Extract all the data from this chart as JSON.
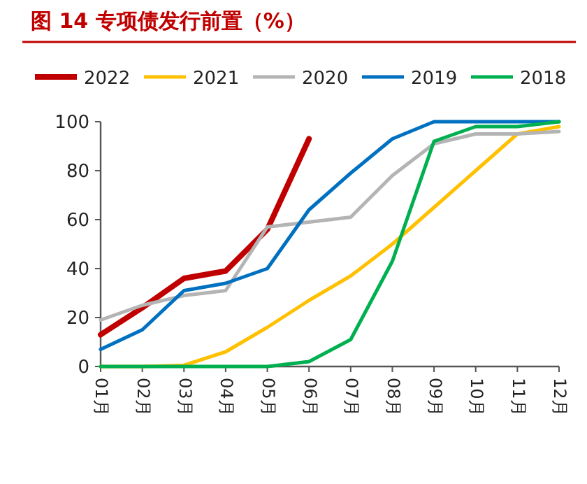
{
  "chart_data": {
    "type": "line",
    "title": "图 14 专项债发行前置（%）",
    "categories": [
      "01月",
      "02月",
      "03月",
      "04月",
      "05月",
      "06月",
      "07月",
      "08月",
      "09月",
      "10月",
      "11月",
      "12月"
    ],
    "series": [
      {
        "name": "2022",
        "color": "#c00000",
        "values": [
          13,
          24,
          36,
          39,
          56,
          93,
          null,
          null,
          null,
          null,
          null,
          null
        ]
      },
      {
        "name": "2021",
        "color": "#ffc000",
        "values": [
          0,
          0,
          0.5,
          6,
          16,
          27,
          37,
          50,
          65,
          80,
          95,
          98
        ]
      },
      {
        "name": "2020",
        "color": "#b4b4b4",
        "values": [
          19,
          25,
          29,
          31,
          57,
          59,
          61,
          78,
          91,
          95,
          95,
          96
        ]
      },
      {
        "name": "2019",
        "color": "#0070c0",
        "values": [
          7,
          15,
          31,
          34,
          40,
          64,
          79,
          93,
          100,
          100,
          100,
          100
        ]
      },
      {
        "name": "2018",
        "color": "#00b050",
        "values": [
          0,
          0,
          0,
          0,
          0,
          2,
          11,
          43,
          92,
          98,
          98,
          100
        ]
      }
    ],
    "ylim": [
      0,
      100
    ],
    "yticks": [
      0,
      20,
      40,
      60,
      80,
      100
    ],
    "grid": false,
    "legend": "top",
    "marker": "none"
  }
}
